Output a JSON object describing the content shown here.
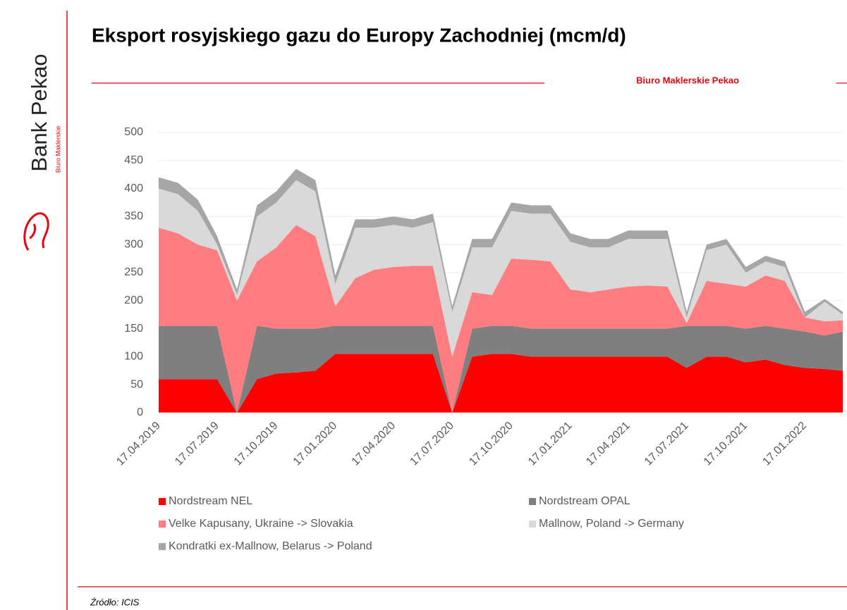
{
  "brand": "Bank Pekao",
  "brand_sub": "Biuro Maklerskie",
  "header_label": "Biuro Maklerskie Pekao",
  "source": "Źródło: ICIS",
  "chart_data": {
    "type": "stacked_area",
    "title": "Eksport rosyjskiego gazu do Europy Zachodniej (mcm/d)",
    "x": [
      "17.04.2019",
      "17.05.2019",
      "17.06.2019",
      "17.07.2019",
      "17.08.2019",
      "17.09.2019",
      "17.10.2019",
      "17.11.2019",
      "17.12.2019",
      "17.01.2020",
      "17.02.2020",
      "17.03.2020",
      "17.04.2020",
      "17.05.2020",
      "17.06.2020",
      "17.07.2020",
      "17.08.2020",
      "17.09.2020",
      "17.10.2020",
      "17.11.2020",
      "17.12.2020",
      "17.01.2021",
      "17.02.2021",
      "17.03.2021",
      "17.04.2021",
      "17.05.2021",
      "17.06.2021",
      "17.07.2021",
      "17.08.2021",
      "17.09.2021",
      "17.10.2021",
      "17.11.2021",
      "17.12.2021",
      "17.01.2022",
      "17.02.2022",
      "17.03.2022"
    ],
    "series": [
      {
        "name": "Nordstream NEL",
        "color": "#ff0000",
        "values": [
          60,
          60,
          60,
          60,
          0,
          60,
          70,
          72,
          75,
          105,
          105,
          105,
          105,
          105,
          105,
          0,
          100,
          105,
          105,
          100,
          100,
          100,
          100,
          100,
          100,
          100,
          100,
          80,
          100,
          100,
          90,
          95,
          85,
          80,
          78,
          75
        ]
      },
      {
        "name": "Nordstream OPAL",
        "color": "#7f7f7f",
        "values": [
          95,
          95,
          95,
          95,
          0,
          95,
          80,
          78,
          75,
          50,
          50,
          50,
          50,
          50,
          50,
          0,
          50,
          50,
          50,
          50,
          50,
          50,
          50,
          50,
          50,
          50,
          50,
          75,
          55,
          55,
          60,
          60,
          65,
          65,
          60,
          70
        ]
      },
      {
        "name": "Velke Kapusany, Ukraine -> Slovakia",
        "color": "#ff7c80",
        "values": [
          175,
          165,
          145,
          135,
          200,
          115,
          145,
          185,
          165,
          35,
          85,
          100,
          105,
          107,
          107,
          100,
          65,
          55,
          120,
          123,
          120,
          70,
          65,
          70,
          75,
          77,
          75,
          5,
          80,
          75,
          75,
          90,
          85,
          25,
          25,
          20
        ]
      },
      {
        "name": "Mallnow, Poland -> Germany",
        "color": "#d9d9d9",
        "values": [
          70,
          70,
          60,
          10,
          10,
          80,
          80,
          80,
          80,
          40,
          90,
          75,
          75,
          68,
          78,
          80,
          80,
          85,
          85,
          82,
          85,
          85,
          80,
          75,
          85,
          83,
          85,
          10,
          55,
          70,
          25,
          25,
          25,
          0,
          35,
          10
        ]
      },
      {
        "name": "Kondratki ex-Mallnow, Belarus -> Poland",
        "color": "#a6a6a6",
        "values": [
          20,
          20,
          20,
          15,
          10,
          20,
          20,
          20,
          20,
          15,
          15,
          15,
          15,
          15,
          15,
          10,
          15,
          15,
          15,
          15,
          15,
          15,
          15,
          15,
          15,
          15,
          15,
          10,
          10,
          10,
          10,
          10,
          10,
          10,
          5,
          5
        ]
      }
    ],
    "xlim": [
      "17.04.2019",
      "17.03.2022"
    ],
    "xticks": [
      "17.04.2019",
      "17.07.2019",
      "17.10.2019",
      "17.01.2020",
      "17.04.2020",
      "17.07.2020",
      "17.10.2020",
      "17.01.2021",
      "17.04.2021",
      "17.07.2021",
      "17.10.2021",
      "17.01.2022"
    ],
    "ylim": [
      0,
      500
    ],
    "yticks": [
      0,
      50,
      100,
      150,
      200,
      250,
      300,
      350,
      400,
      450,
      500
    ],
    "grid": true
  }
}
